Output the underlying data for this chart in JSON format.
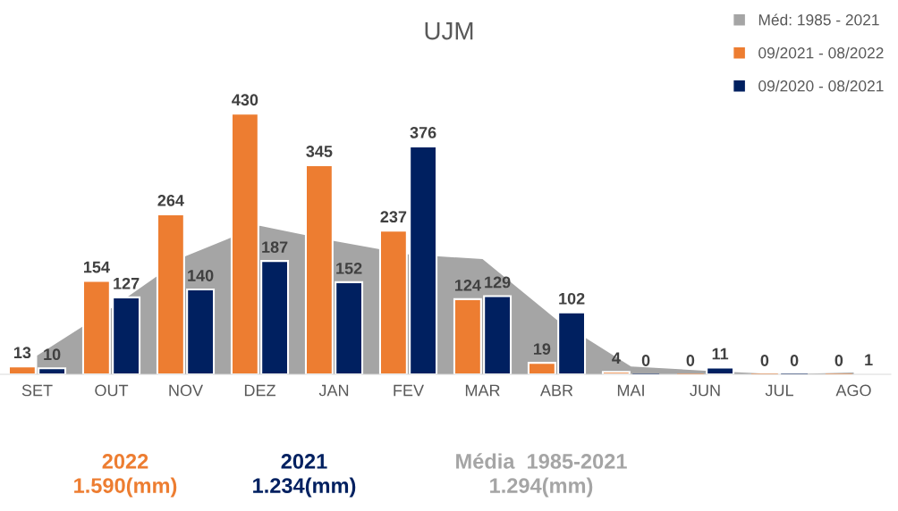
{
  "chart_data": {
    "type": "bar",
    "title": "UJM",
    "categories": [
      "SET",
      "OUT",
      "NOV",
      "DEZ",
      "JAN",
      "FEV",
      "MAR",
      "ABR",
      "MAI",
      "JUN",
      "JUL",
      "AGO"
    ],
    "series": [
      {
        "name": "Méd: 1985 - 2021",
        "type": "area",
        "color": "#a5a5a5",
        "values": [
          31,
          109,
          195,
          245,
          220,
          198,
          190,
          90,
          13,
          6,
          0,
          3
        ]
      },
      {
        "name": "09/2021 - 08/2022",
        "color": "#ed7d31",
        "values": [
          13,
          154,
          264,
          430,
          345,
          237,
          124,
          19,
          4,
          0,
          0,
          0
        ],
        "data_labels": true
      },
      {
        "name": "09/2020 - 08/2021",
        "color": "#002060",
        "values": [
          10,
          127,
          140,
          187,
          152,
          376,
          129,
          102,
          0,
          11,
          0,
          1
        ],
        "data_labels": true
      }
    ],
    "tick_labels": "x",
    "grid": false,
    "legend": "top right",
    "annotations": [
      "2022\n1.590(mm)",
      "2021\n1.234(mm)",
      "Média  1985-2021\n1.294(mm)"
    ]
  }
}
